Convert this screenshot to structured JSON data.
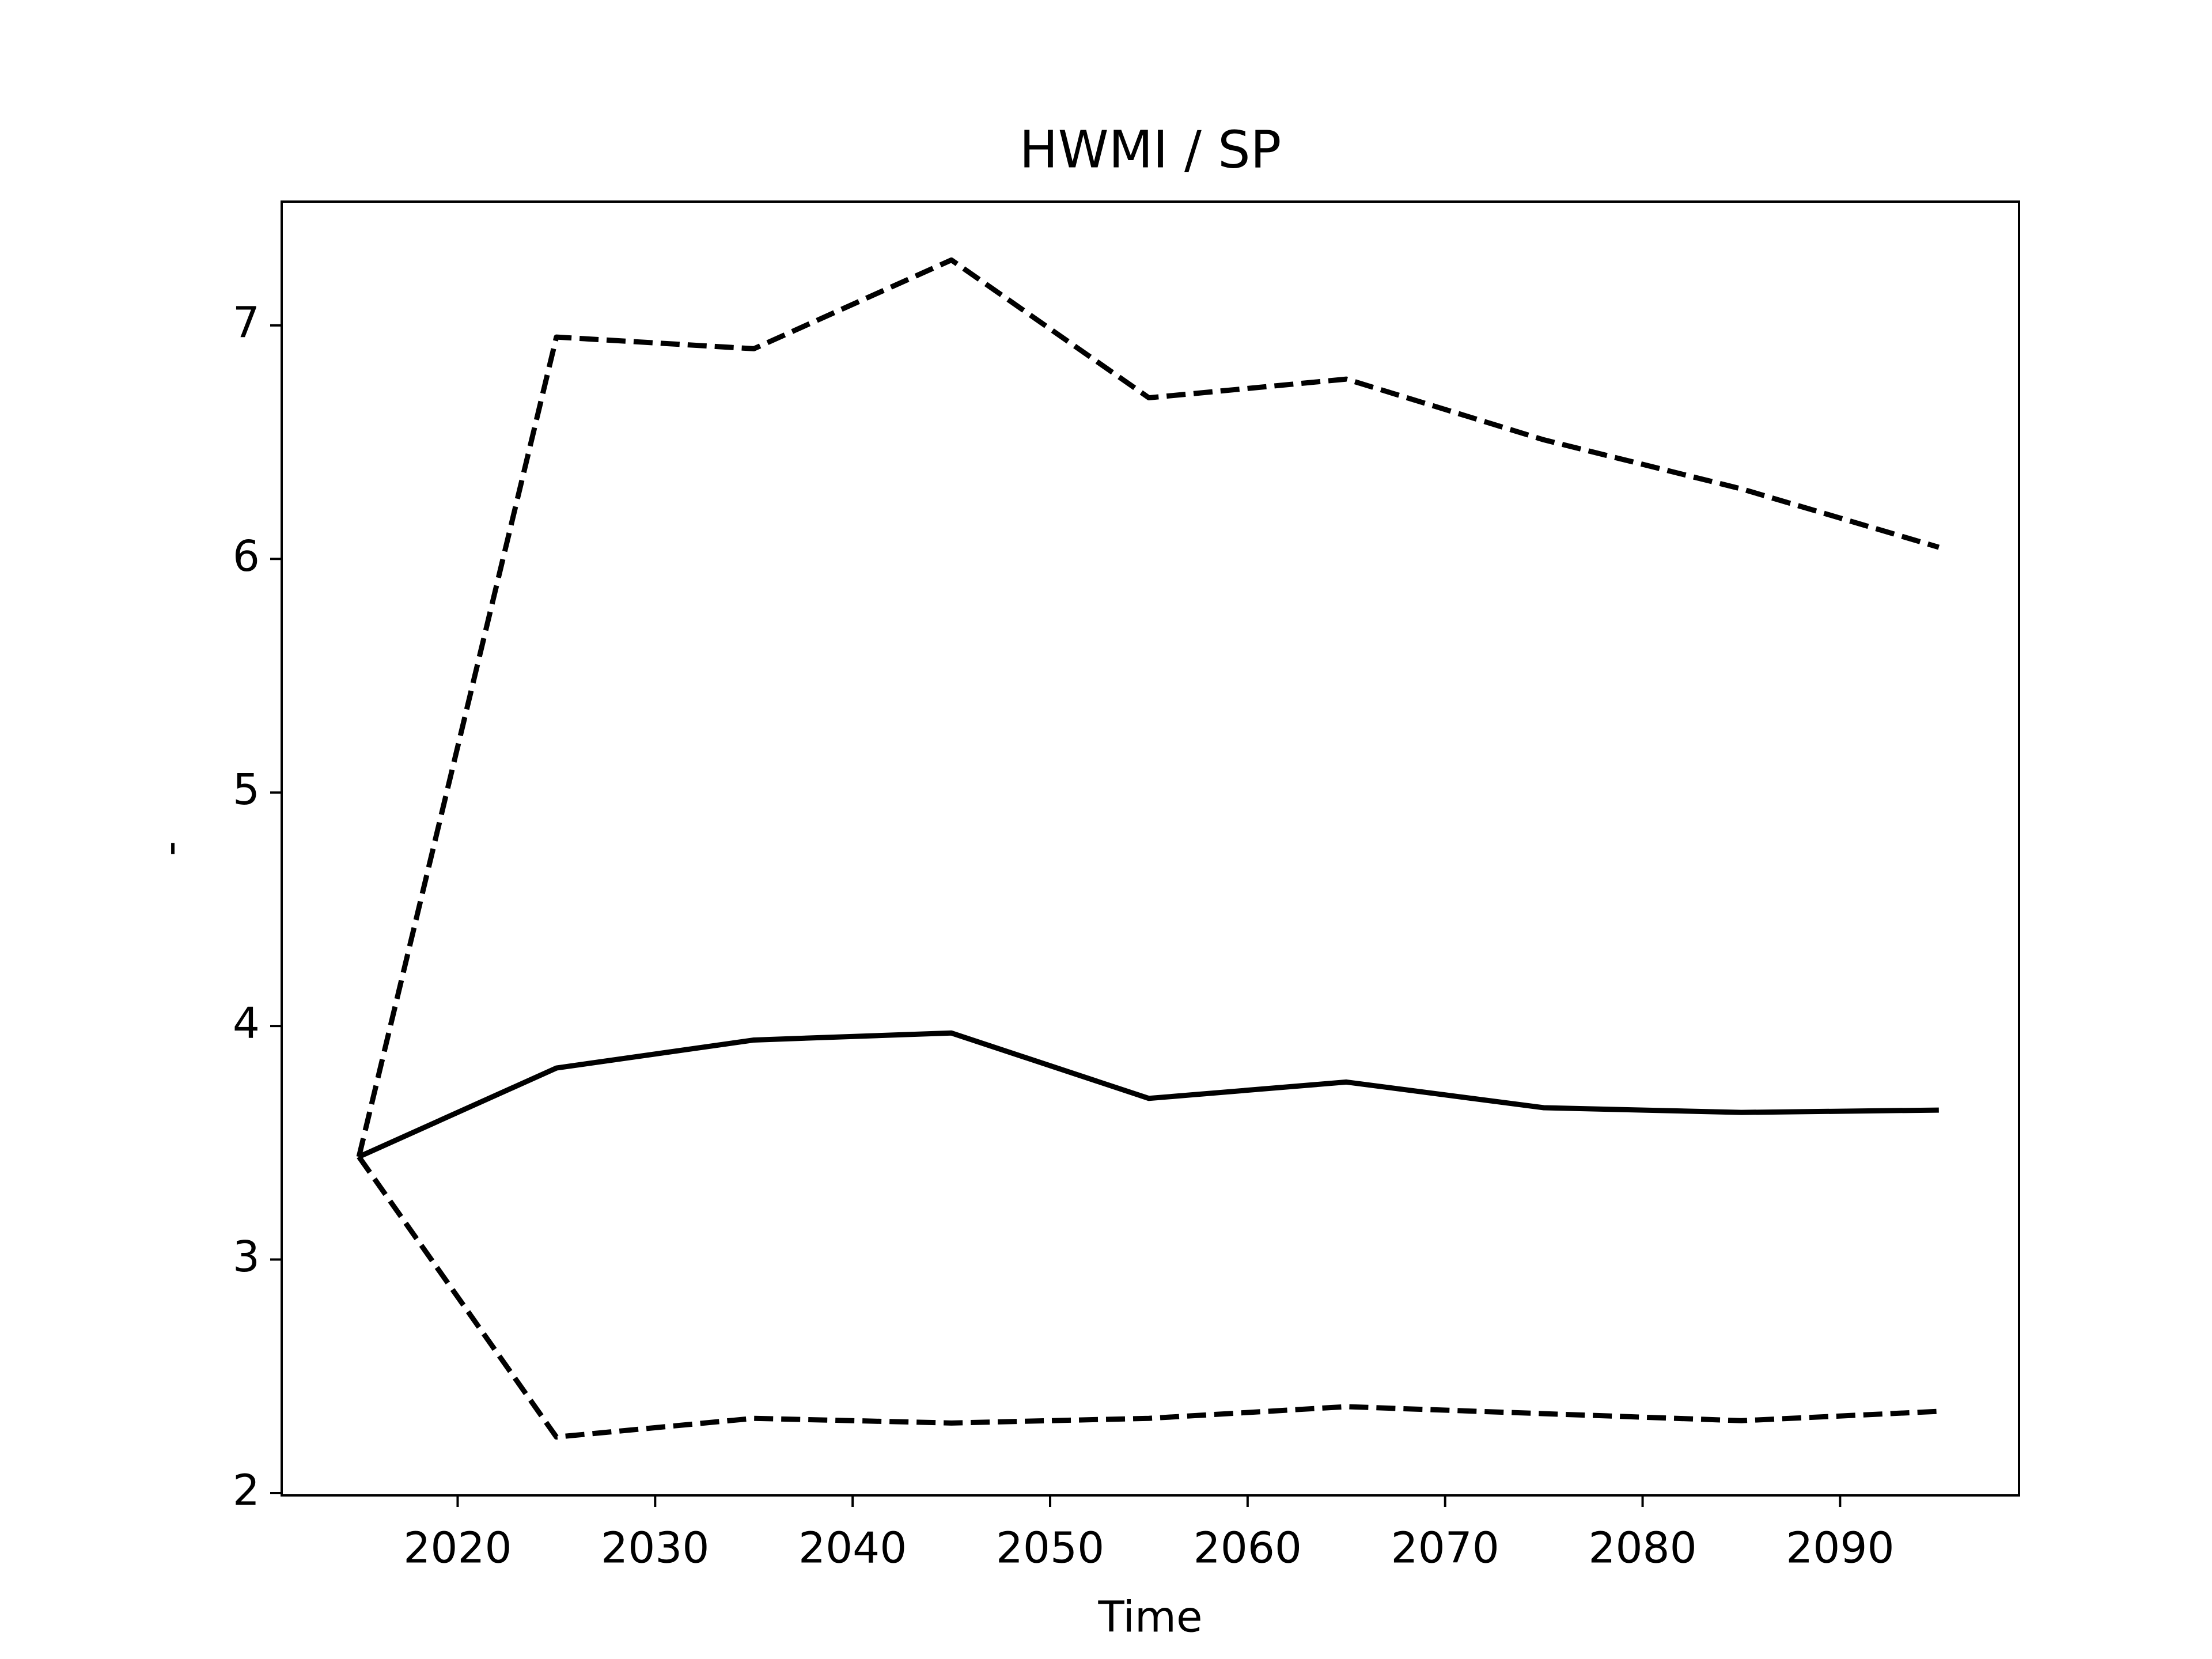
{
  "chart_data": {
    "type": "line",
    "title": "HWMI / SP",
    "xlabel": "Time",
    "ylabel": "-",
    "x": [
      2015,
      2025,
      2035,
      2045,
      2055,
      2065,
      2075,
      2085,
      2095
    ],
    "series": [
      {
        "color": "#000000",
        "linestyle": "dashed",
        "values": [
          3.44,
          6.95,
          6.9,
          7.28,
          6.69,
          6.77,
          6.51,
          6.3,
          6.05
        ]
      },
      {
        "color": "#000000",
        "linestyle": "solid",
        "values": [
          3.44,
          3.82,
          3.94,
          3.97,
          3.69,
          3.76,
          3.65,
          3.63,
          3.64
        ]
      },
      {
        "color": "#000000",
        "linestyle": "dashed",
        "values": [
          3.44,
          2.24,
          2.32,
          2.3,
          2.32,
          2.37,
          2.34,
          2.31,
          2.35
        ]
      }
    ],
    "xlim": [
      2011.09,
      2099.06
    ],
    "xticks": [
      2020,
      2030,
      2040,
      2050,
      2060,
      2070,
      2080,
      2090
    ],
    "ylim": [
      1.99,
      7.53
    ],
    "yticks": [
      2,
      3,
      4,
      5,
      6,
      7
    ],
    "grid": false
  }
}
